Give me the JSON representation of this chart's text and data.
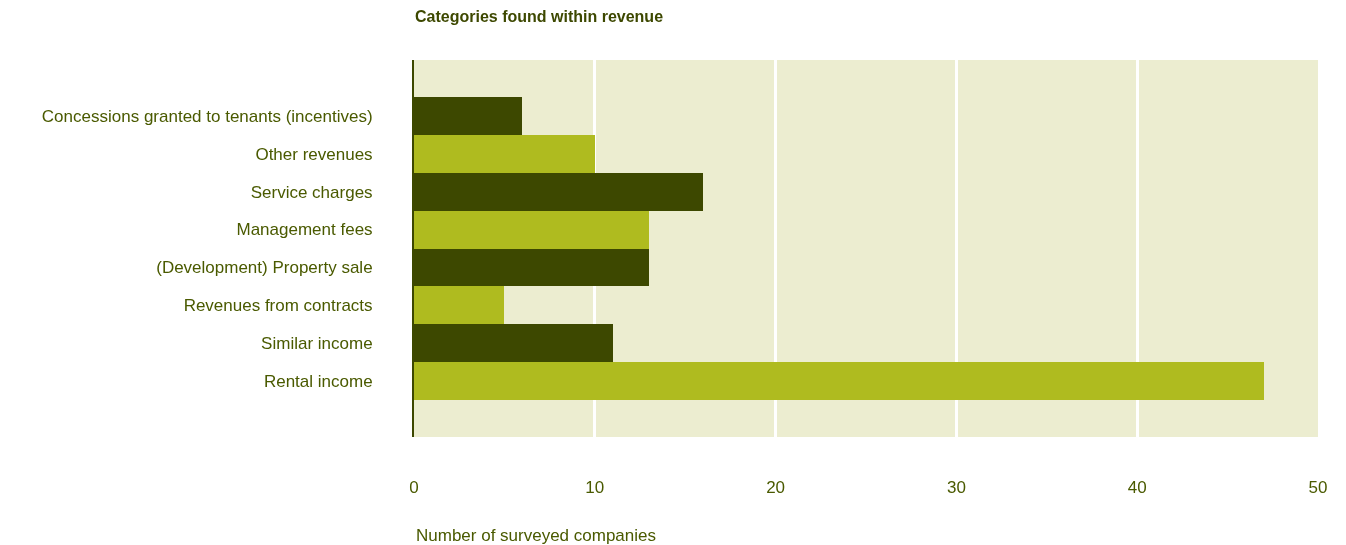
{
  "chart_data": {
    "type": "bar",
    "orientation": "horizontal",
    "title": "Categories found within revenue",
    "xlabel": "Number of surveyed companies",
    "categories": [
      "Concessions granted to tenants (incentives)",
      "Other revenues",
      "Service charges",
      "Management fees",
      "(Development) Property sale",
      "Revenues from contracts",
      "Similar income",
      "Rental income"
    ],
    "values": [
      6,
      10,
      16,
      13,
      13,
      5,
      11,
      47
    ],
    "colors": [
      "#3d4800",
      "#afbb1f",
      "#3d4800",
      "#afbb1f",
      "#3d4800",
      "#afbb1f",
      "#3d4800",
      "#afbb1f"
    ],
    "xlim": [
      0,
      50
    ],
    "xticks": [
      0,
      10,
      20,
      30,
      40,
      50
    ],
    "grid": "x"
  }
}
